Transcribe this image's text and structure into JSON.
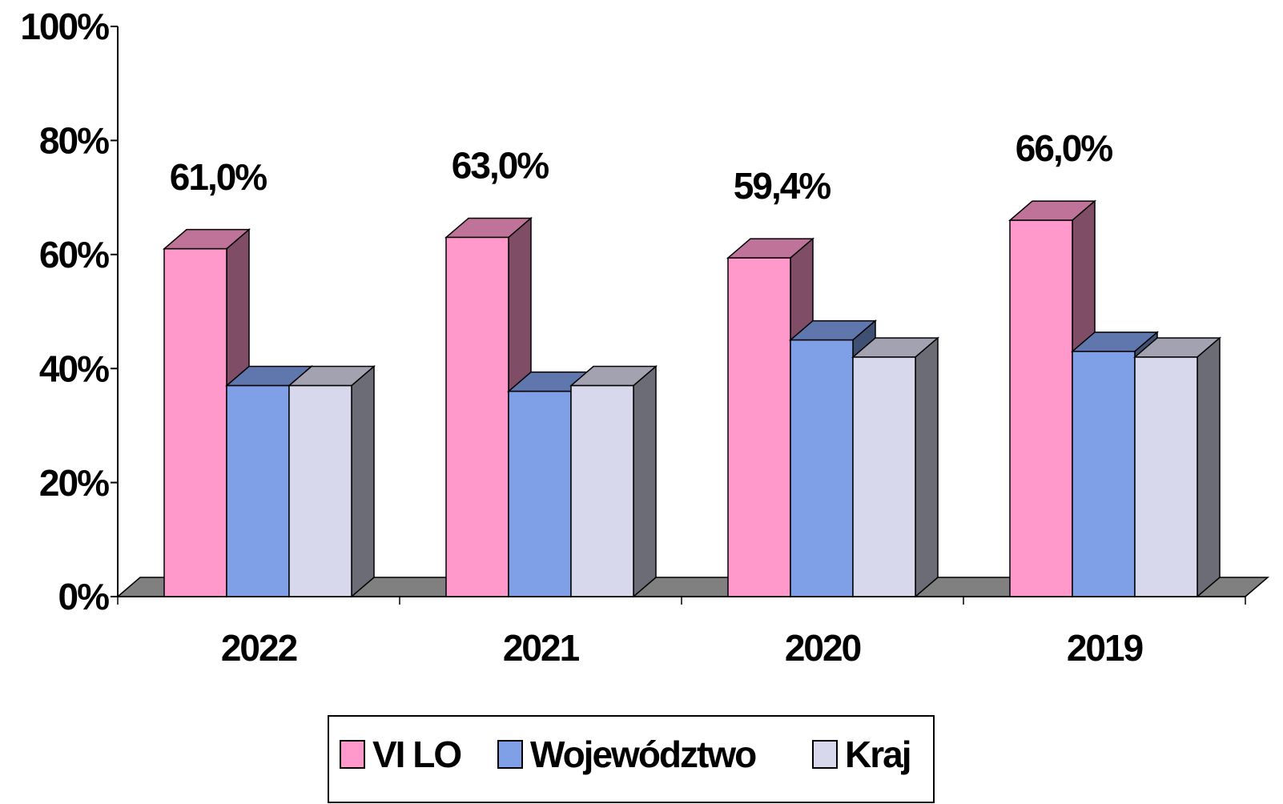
{
  "chart_data": {
    "type": "bar3d",
    "categories": [
      "2022",
      "2021",
      "2020",
      "2019"
    ],
    "series": [
      {
        "name": "VI LO",
        "color": "#ff99cc",
        "values": [
          61.0,
          63.0,
          59.4,
          66.0
        ],
        "value_labels": [
          "61,0%",
          "63,0%",
          "59,4%",
          "66,0%"
        ]
      },
      {
        "name": "Województwo",
        "color": "#7f9fe6",
        "values": [
          37,
          36,
          45,
          43
        ]
      },
      {
        "name": "Kraj",
        "color": "#d8d8ec",
        "values": [
          37,
          37,
          42,
          42
        ]
      }
    ],
    "ylim": [
      0,
      100
    ],
    "yticks": [
      {
        "value": 0,
        "label": "0%"
      },
      {
        "value": 20,
        "label": "20%"
      },
      {
        "value": 40,
        "label": "40%"
      },
      {
        "value": 60,
        "label": "60%"
      },
      {
        "value": 80,
        "label": "80%"
      },
      {
        "value": 100,
        "label": "100%"
      }
    ],
    "legend": "bottom"
  }
}
